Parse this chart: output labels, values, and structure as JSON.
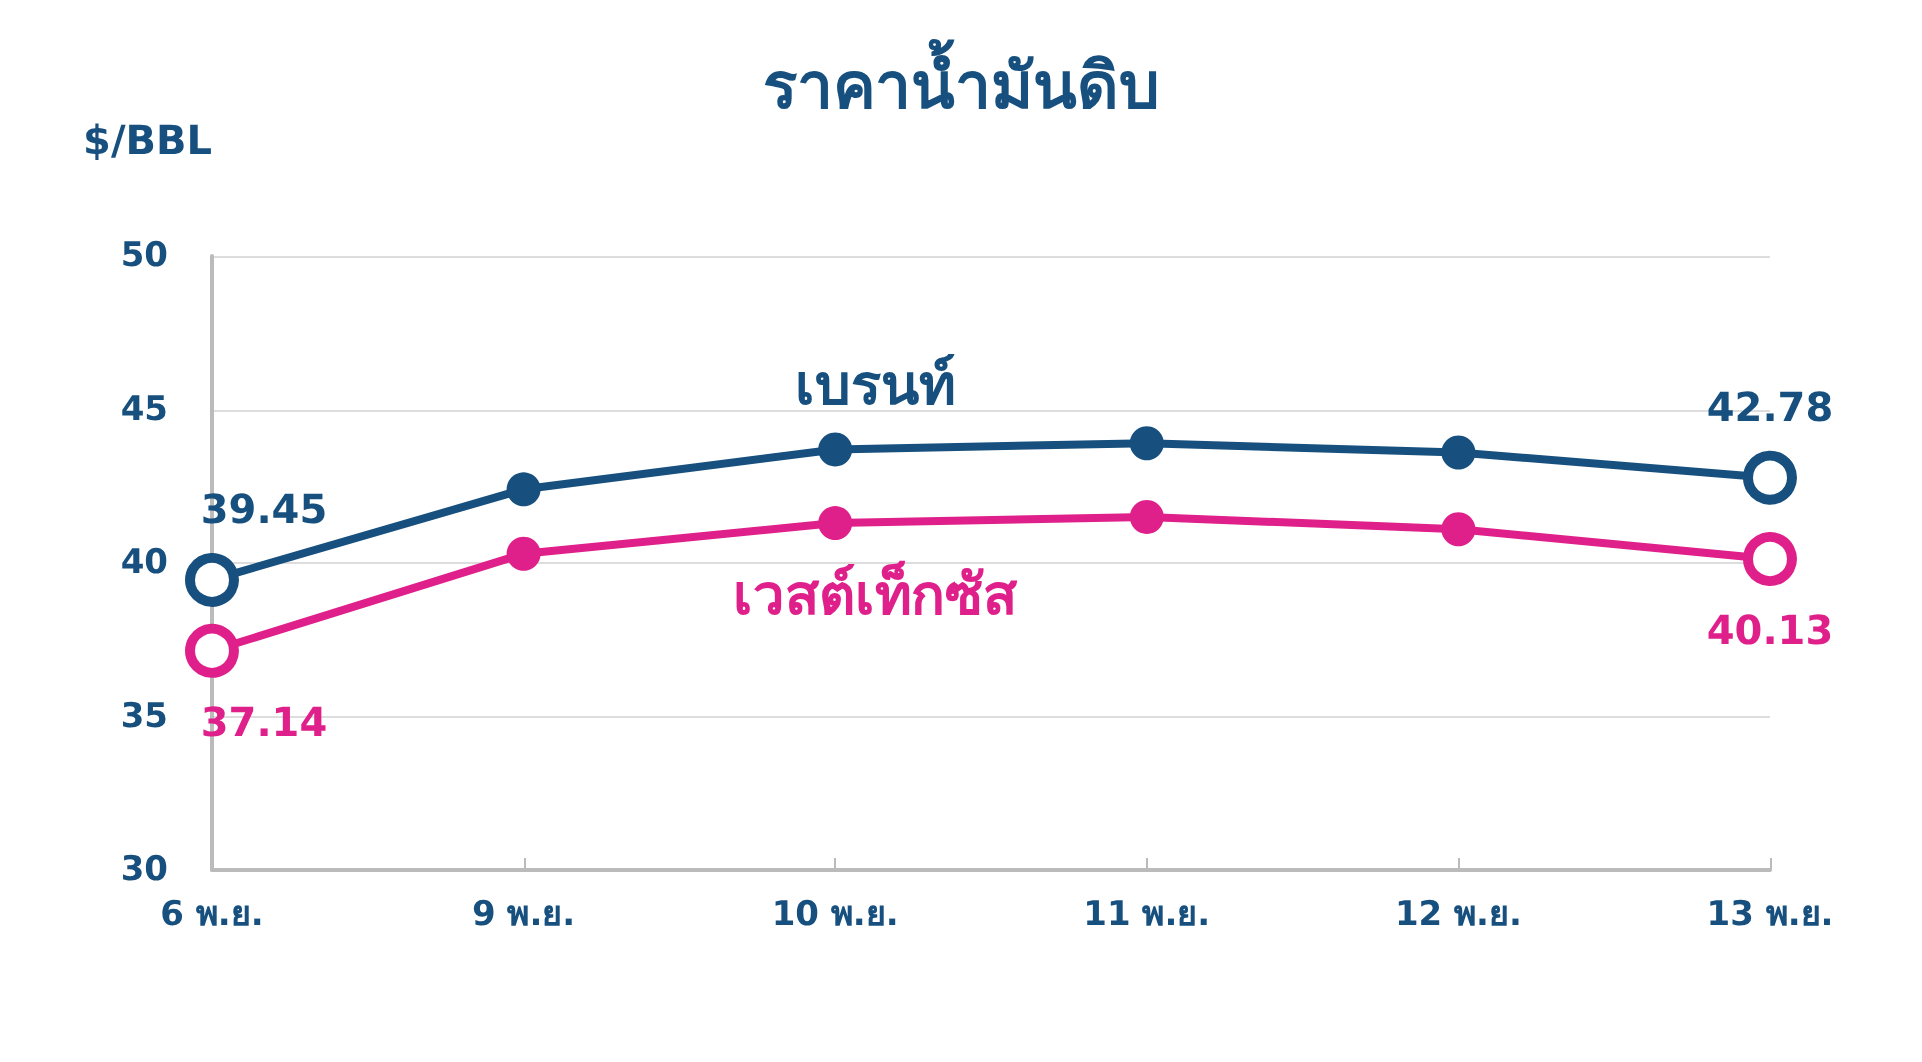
{
  "chart_data": {
    "type": "line",
    "title": "ราคาน้ำมันดิบ",
    "ylabel": "$/BBL",
    "categories": [
      "6 พ.ย.",
      "9 พ.ย.",
      "10 พ.ย.",
      "11 พ.ย.",
      "12 พ.ย.",
      "13 พ.ย."
    ],
    "series": [
      {
        "name": "เบรนท์",
        "color": "#17507e",
        "values": [
          39.45,
          42.4,
          43.7,
          43.9,
          43.6,
          42.78
        ],
        "value_labels": [
          "39.45",
          null,
          null,
          null,
          null,
          "42.78"
        ]
      },
      {
        "name": "เวสต์เท็กซัส",
        "color": "#e0208a",
        "values": [
          37.14,
          40.3,
          41.3,
          41.5,
          41.1,
          40.13
        ],
        "value_labels": [
          "37.14",
          null,
          null,
          null,
          null,
          "40.13"
        ]
      }
    ],
    "ylim": [
      30,
      50
    ],
    "yticks": [
      30,
      35,
      40,
      45,
      50
    ],
    "grid": "y",
    "legend": false,
    "marker": "circle",
    "line_style": "solid"
  }
}
